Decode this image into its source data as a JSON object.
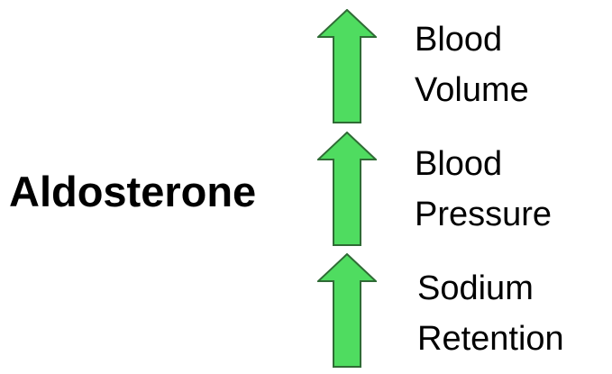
{
  "title": "Aldosterone",
  "colors": {
    "arrow_fill": "#4fdc60",
    "arrow_stroke": "#2f6b35"
  },
  "effects": [
    {
      "arrow_icon": "up-arrow-icon",
      "lines": [
        "Blood",
        "Volume"
      ]
    },
    {
      "arrow_icon": "up-arrow-icon",
      "lines": [
        "Blood",
        "Pressure"
      ]
    },
    {
      "arrow_icon": "up-arrow-icon",
      "lines": [
        "Sodium",
        "Retention"
      ]
    }
  ]
}
